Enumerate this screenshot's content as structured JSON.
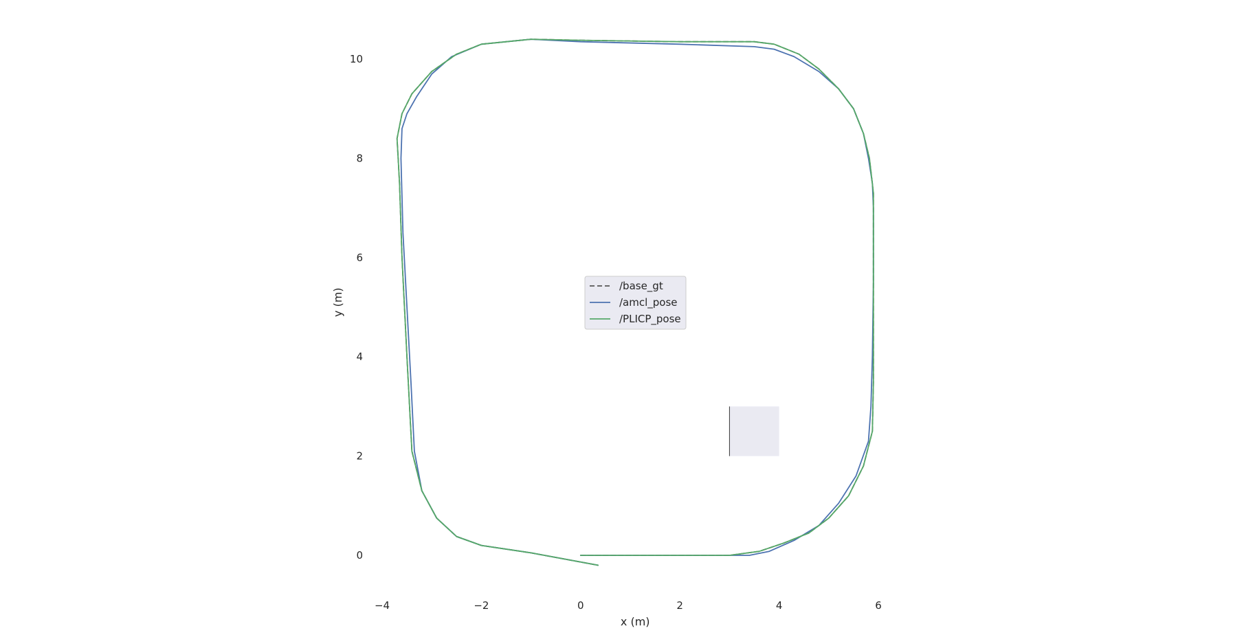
{
  "chart_data": {
    "type": "line",
    "title": "",
    "xlabel": "x (m)",
    "ylabel": "y (m)",
    "xlim": [
      -4.4,
      6.2
    ],
    "ylim": [
      -0.8,
      10.6
    ],
    "xticks": [
      -4,
      -2,
      0,
      2,
      4,
      6
    ],
    "xtick_labels": [
      "−4",
      "−2",
      "0",
      "2",
      "4",
      "6"
    ],
    "yticks": [
      0,
      2,
      4,
      6,
      8,
      10
    ],
    "ytick_labels": [
      "0",
      "2",
      "4",
      "6",
      "8",
      "10"
    ],
    "grid": false,
    "legend": {
      "placement": "center"
    },
    "inset_rect": {
      "x0": 3.0,
      "x1": 4.0,
      "y0": 2.0,
      "y1": 3.0,
      "color": "#eaeaf2"
    },
    "series": [
      {
        "name": "/base_gt",
        "color": "#555555",
        "dash": true,
        "points": [
          [
            0.0,
            0.0
          ],
          [
            1.0,
            0.0
          ],
          [
            2.0,
            0.0
          ],
          [
            3.0,
            0.0
          ],
          [
            3.6,
            0.08
          ],
          [
            4.1,
            0.25
          ],
          [
            4.6,
            0.45
          ],
          [
            5.0,
            0.75
          ],
          [
            5.4,
            1.2
          ],
          [
            5.7,
            1.8
          ],
          [
            5.88,
            2.5
          ],
          [
            5.9,
            3.5
          ],
          [
            5.9,
            5.0
          ],
          [
            5.9,
            6.5
          ],
          [
            5.9,
            7.3
          ],
          [
            5.82,
            8.0
          ],
          [
            5.7,
            8.5
          ],
          [
            5.5,
            9.0
          ],
          [
            5.2,
            9.4
          ],
          [
            4.8,
            9.8
          ],
          [
            4.4,
            10.1
          ],
          [
            3.9,
            10.3
          ],
          [
            3.5,
            10.35
          ],
          [
            2.0,
            10.35
          ],
          [
            0.0,
            10.38
          ],
          [
            -1.0,
            10.4
          ],
          [
            -2.0,
            10.3
          ],
          [
            -2.5,
            10.1
          ],
          [
            -3.0,
            9.75
          ],
          [
            -3.4,
            9.3
          ],
          [
            -3.6,
            8.9
          ],
          [
            -3.7,
            8.4
          ],
          [
            -3.65,
            7.5
          ],
          [
            -3.6,
            6.0
          ],
          [
            -3.5,
            4.0
          ],
          [
            -3.4,
            2.1
          ],
          [
            -3.2,
            1.3
          ],
          [
            -2.9,
            0.75
          ],
          [
            -2.5,
            0.38
          ],
          [
            -2.0,
            0.2
          ],
          [
            -1.0,
            0.05
          ],
          [
            0.35,
            -0.2
          ]
        ]
      },
      {
        "name": "/amcl_pose",
        "color": "#4c72b0",
        "dash": false,
        "points": [
          [
            0.0,
            0.0
          ],
          [
            1.0,
            0.0
          ],
          [
            2.0,
            0.0
          ],
          [
            3.0,
            0.0
          ],
          [
            3.4,
            0.0
          ],
          [
            3.8,
            0.08
          ],
          [
            4.3,
            0.3
          ],
          [
            4.8,
            0.6
          ],
          [
            5.2,
            1.05
          ],
          [
            5.55,
            1.6
          ],
          [
            5.8,
            2.3
          ],
          [
            5.85,
            3.0
          ],
          [
            5.88,
            4.0
          ],
          [
            5.9,
            5.5
          ],
          [
            5.9,
            7.0
          ],
          [
            5.88,
            7.5
          ],
          [
            5.8,
            8.0
          ],
          [
            5.7,
            8.5
          ],
          [
            5.5,
            9.0
          ],
          [
            5.2,
            9.4
          ],
          [
            4.8,
            9.75
          ],
          [
            4.3,
            10.05
          ],
          [
            3.9,
            10.2
          ],
          [
            3.5,
            10.25
          ],
          [
            2.0,
            10.3
          ],
          [
            0.0,
            10.35
          ],
          [
            -1.0,
            10.4
          ],
          [
            -2.0,
            10.3
          ],
          [
            -2.6,
            10.05
          ],
          [
            -3.0,
            9.7
          ],
          [
            -3.3,
            9.25
          ],
          [
            -3.5,
            8.9
          ],
          [
            -3.6,
            8.6
          ],
          [
            -3.62,
            8.0
          ],
          [
            -3.58,
            6.5
          ],
          [
            -3.5,
            5.0
          ],
          [
            -3.42,
            3.5
          ],
          [
            -3.35,
            2.1
          ],
          [
            -3.2,
            1.3
          ],
          [
            -2.9,
            0.75
          ],
          [
            -2.5,
            0.38
          ],
          [
            -2.0,
            0.2
          ],
          [
            -1.0,
            0.05
          ],
          [
            0.35,
            -0.2
          ]
        ]
      },
      {
        "name": "/PLICP_pose",
        "color": "#55a868",
        "dash": false,
        "points": [
          [
            0.0,
            0.0
          ],
          [
            1.0,
            0.0
          ],
          [
            2.0,
            0.0
          ],
          [
            3.0,
            0.0
          ],
          [
            3.6,
            0.08
          ],
          [
            4.1,
            0.25
          ],
          [
            4.6,
            0.45
          ],
          [
            5.0,
            0.75
          ],
          [
            5.4,
            1.2
          ],
          [
            5.7,
            1.8
          ],
          [
            5.88,
            2.5
          ],
          [
            5.9,
            3.5
          ],
          [
            5.9,
            5.0
          ],
          [
            5.9,
            6.5
          ],
          [
            5.9,
            7.3
          ],
          [
            5.82,
            8.0
          ],
          [
            5.7,
            8.5
          ],
          [
            5.5,
            9.0
          ],
          [
            5.2,
            9.4
          ],
          [
            4.8,
            9.8
          ],
          [
            4.4,
            10.1
          ],
          [
            3.9,
            10.3
          ],
          [
            3.5,
            10.35
          ],
          [
            2.0,
            10.35
          ],
          [
            0.0,
            10.38
          ],
          [
            -1.0,
            10.4
          ],
          [
            -2.0,
            10.3
          ],
          [
            -2.5,
            10.1
          ],
          [
            -3.0,
            9.75
          ],
          [
            -3.4,
            9.3
          ],
          [
            -3.6,
            8.9
          ],
          [
            -3.7,
            8.4
          ],
          [
            -3.65,
            7.5
          ],
          [
            -3.6,
            6.0
          ],
          [
            -3.5,
            4.0
          ],
          [
            -3.4,
            2.1
          ],
          [
            -3.2,
            1.3
          ],
          [
            -2.9,
            0.75
          ],
          [
            -2.5,
            0.38
          ],
          [
            -2.0,
            0.2
          ],
          [
            -1.0,
            0.05
          ],
          [
            0.35,
            -0.2
          ]
        ]
      }
    ]
  }
}
